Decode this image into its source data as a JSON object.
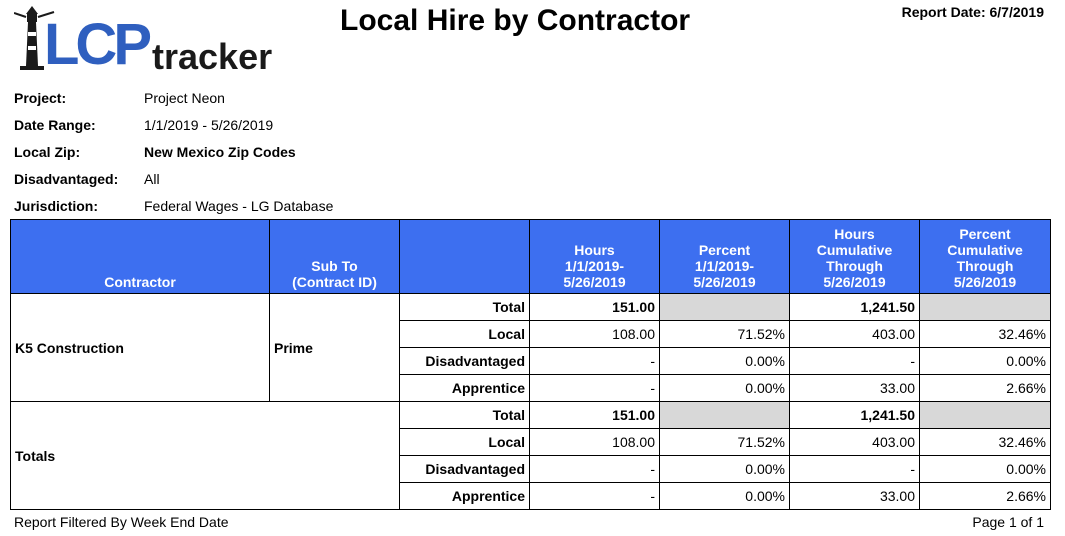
{
  "logo": {
    "text_lcp": "LCP",
    "text_tracker": "tracker",
    "brand_blue": "#2f5fbf"
  },
  "header": {
    "title": "Local Hire by Contractor",
    "report_date_label": "Report Date:",
    "report_date_value": "6/7/2019"
  },
  "meta": [
    {
      "label": "Project:",
      "value": "Project Neon"
    },
    {
      "label": "Date Range:",
      "value": "1/1/2019 - 5/26/2019"
    },
    {
      "label": "Local Zip:",
      "value": "New Mexico Zip Codes"
    },
    {
      "label": "Disadvantaged:",
      "value": "All"
    },
    {
      "label": "Jurisdiction:",
      "value": "Federal Wages - LG Database"
    }
  ],
  "table": {
    "header_color": "#3d6ff0",
    "columns": {
      "contractor": "Contractor",
      "sub_to_1": "Sub To",
      "sub_to_2": "(Contract ID)",
      "blank": "",
      "hours_1": "Hours",
      "hours_2": "1/1/2019-",
      "hours_3": "5/26/2019",
      "percent_1": "Percent",
      "percent_2": "1/1/2019-",
      "percent_3": "5/26/2019",
      "hcum_1": "Hours",
      "hcum_2": "Cumulative",
      "hcum_3": "Through",
      "hcum_4": "5/26/2019",
      "pcum_1": "Percent",
      "pcum_2": "Cumulative",
      "pcum_3": "Through",
      "pcum_4": "5/26/2019"
    },
    "groups": [
      {
        "contractor": "K5 Construction",
        "sub_to": "Prime",
        "rows": [
          {
            "label": "Total",
            "hours": "151.00",
            "percent": "",
            "hours_cum": "1,241.50",
            "percent_cum": ""
          },
          {
            "label": "Local",
            "hours": "108.00",
            "percent": "71.52%",
            "hours_cum": "403.00",
            "percent_cum": "32.46%"
          },
          {
            "label": "Disadvantaged",
            "hours": "-",
            "percent": "0.00%",
            "hours_cum": "-",
            "percent_cum": "0.00%"
          },
          {
            "label": "Apprentice",
            "hours": "-",
            "percent": "0.00%",
            "hours_cum": "33.00",
            "percent_cum": "2.66%"
          }
        ]
      }
    ],
    "totals": {
      "label": "Totals",
      "rows": [
        {
          "label": "Total",
          "hours": "151.00",
          "percent": "",
          "hours_cum": "1,241.50",
          "percent_cum": ""
        },
        {
          "label": "Local",
          "hours": "108.00",
          "percent": "71.52%",
          "hours_cum": "403.00",
          "percent_cum": "32.46%"
        },
        {
          "label": "Disadvantaged",
          "hours": "-",
          "percent": "0.00%",
          "hours_cum": "-",
          "percent_cum": "0.00%"
        },
        {
          "label": "Apprentice",
          "hours": "-",
          "percent": "0.00%",
          "hours_cum": "33.00",
          "percent_cum": "2.66%"
        }
      ]
    }
  },
  "footer": {
    "filter_note": "Report Filtered By Week End Date",
    "page_label": "Page 1 of 1"
  }
}
